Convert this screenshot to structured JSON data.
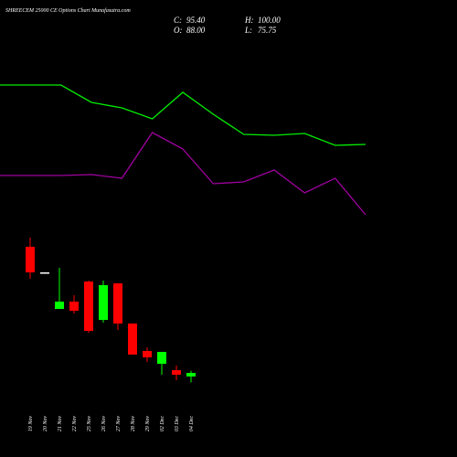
{
  "chart_data": [
    {
      "type": "candlestick",
      "title": "SHREECEM 25000 CE Options Chart Munafasutra.com",
      "summary": {
        "labels": [
          "C:",
          "H:",
          "O:",
          "L:"
        ],
        "value_labels": [
          "95.40",
          "100.00",
          "88.00",
          "75.75"
        ]
      },
      "categories": [
        "19 Nov",
        "20 Nov",
        "21 Nov",
        "22 Nov",
        "25 Nov",
        "26 Nov",
        "27 Nov",
        "28 Nov",
        "29 Nov",
        "02 Dec",
        "03 Dec",
        "04 Dec"
      ],
      "open": [
        357.6,
        304.4,
        228.4,
        243.6,
        285.4,
        205.6,
        281.6,
        198.0,
        141.0,
        114.4,
        101.1,
        88.0
      ],
      "high": [
        376.6,
        304.4,
        313.9,
        256.9,
        287.3,
        287.3,
        281.6,
        198.0,
        148.6,
        139.1,
        110.6,
        100.0
      ],
      "low": [
        291.1,
        304.4,
        228.4,
        218.9,
        179.0,
        199.9,
        184.7,
        133.4,
        118.2,
        91.6,
        80.2,
        75.75
      ],
      "close": [
        304.4,
        304.4,
        243.6,
        224.6,
        182.8,
        277.8,
        198.0,
        133.4,
        127.7,
        139.1,
        91.6,
        95.4
      ],
      "up_color": "#00ff00",
      "down_color": "#ff0000",
      "flat_color": "#ffffff",
      "ylim": [
        72.6,
        775.6
      ]
    },
    {
      "type": "line",
      "series": [
        {
          "color": "#00ee00",
          "values": [
            693.9,
            693.9,
            693.9,
            657.8,
            646.4,
            623.6,
            678.7,
            633.1,
            591.3,
            589.4,
            593.2,
            568.5,
            570.4
          ]
        },
        {
          "color": "#a000a0",
          "values": [
            505.8,
            505.8,
            505.8,
            507.7,
            500.1,
            595.1,
            560.9,
            488.7,
            492.5,
            517.2,
            469.7,
            500.1,
            424.1
          ]
        }
      ],
      "ylim": [
        72.6,
        775.6
      ]
    }
  ]
}
